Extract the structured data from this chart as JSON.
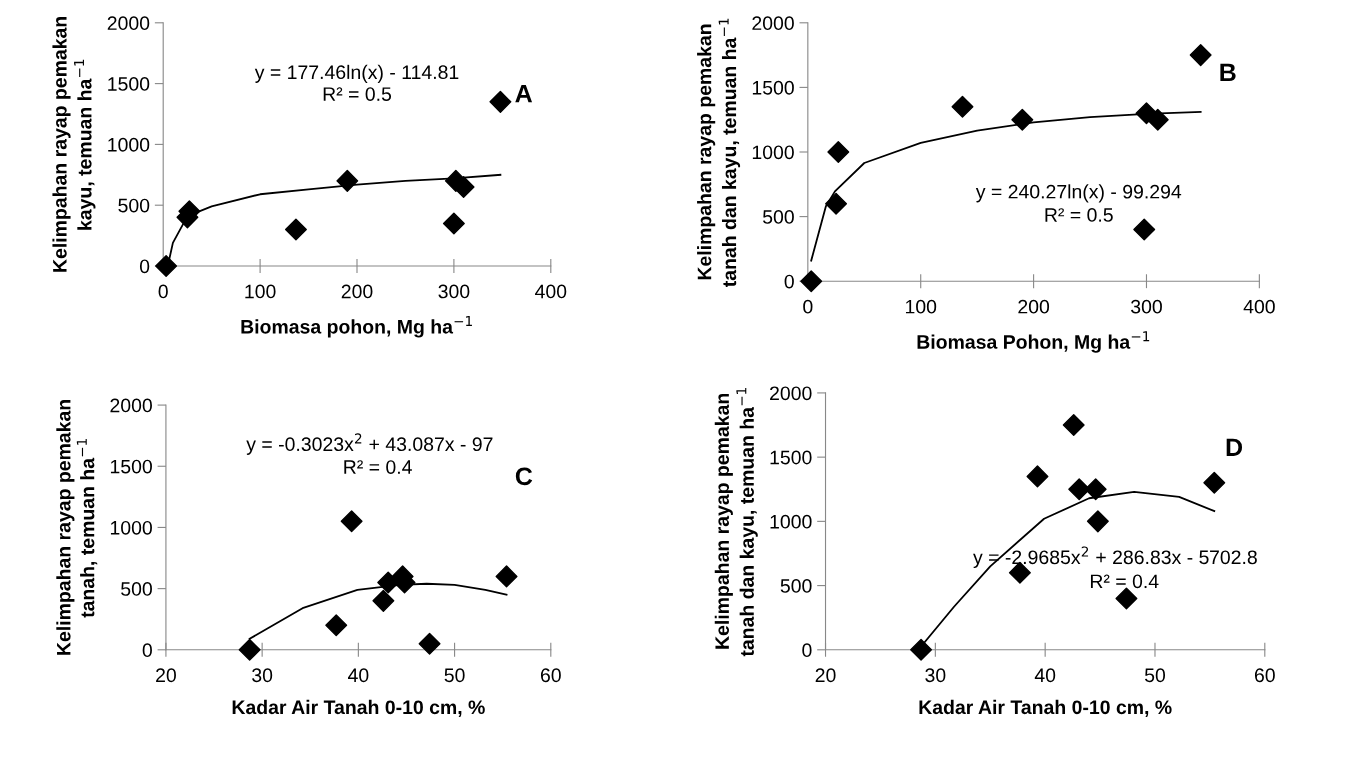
{
  "chart_data": [
    {
      "type": "scatter",
      "xlabel": "Biomasa pohon, Mg ha$^{−1}$",
      "ylabel": "Kelimpahan rayap pemakan\nkayu, temuan ha$^{−1}$",
      "annotations": [
        "A",
        "y = 177.46ln(x) - 114.81",
        "R² = 0.5"
      ],
      "xlim": [
        0,
        400
      ],
      "xticks": [
        0,
        100,
        200,
        300,
        400
      ],
      "ylim": [
        0,
        2000
      ],
      "yticks": [
        0,
        500,
        1000,
        1500,
        2000
      ],
      "marker": "diamond",
      "grid": false,
      "legend": false,
      "series": [
        {
          "color": "#000000",
          "x": [
            3,
            25,
            27,
            137,
            190,
            300,
            302,
            310,
            348
          ],
          "values": [
            0,
            400,
            450,
            300,
            700,
            350,
            700,
            650,
            1350
          ]
        },
        {
          "type": "line",
          "marker": "none",
          "color": "#000000",
          "x": [
            5,
            10,
            25,
            50,
            100,
            150,
            200,
            250,
            300,
            348
          ],
          "values": [
            10,
            190,
            410,
            490,
            590,
            630,
            670,
            700,
            720,
            750
          ]
        }
      ]
    },
    {
      "type": "scatter",
      "xlabel": "Biomasa Pohon, Mg ha$^{−1}$",
      "ylabel": "Kelimpahan rayap pemakan\ntanah dan kayu, temuan ha$^{−1}$",
      "annotations": [
        "B",
        "y = 240.27ln(x) - 99.294",
        "R² = 0.5"
      ],
      "xlim": [
        0,
        400
      ],
      "xticks": [
        0,
        100,
        200,
        300,
        400
      ],
      "ylim": [
        0,
        2000
      ],
      "yticks": [
        0,
        500,
        1000,
        1500,
        2000
      ],
      "marker": "diamond",
      "grid": false,
      "legend": false,
      "series": [
        {
          "color": "#000000",
          "x": [
            3,
            25,
            27,
            137,
            190,
            298,
            300,
            310,
            348
          ],
          "values": [
            0,
            600,
            1000,
            1350,
            1250,
            400,
            1300,
            1250,
            1750
          ]
        },
        {
          "type": "line",
          "marker": "none",
          "color": "#000000",
          "x": [
            3,
            16,
            24,
            50,
            100,
            150,
            200,
            250,
            300,
            348
          ],
          "values": [
            160,
            580,
            695,
            915,
            1070,
            1165,
            1230,
            1270,
            1295,
            1310
          ]
        }
      ]
    },
    {
      "type": "scatter",
      "xlabel": "Kadar Air Tanah 0-10 cm, %",
      "ylabel": "Kelimpahan rayap pemakan\ntanah, temuan ha$^{−1}$",
      "annotations": [
        "C",
        "y = -0.3023x$^{2}$ + 43.087x - 97",
        "R² = 0.4"
      ],
      "xlim": [
        20,
        60
      ],
      "xticks": [
        20,
        30,
        40,
        50,
        60
      ],
      "ylim": [
        0,
        2000
      ],
      "yticks": [
        0,
        500,
        1000,
        1500,
        2000
      ],
      "marker": "diamond",
      "grid": false,
      "legend": false,
      "series": [
        {
          "color": "#000000",
          "x": [
            28.7,
            37.7,
            39.3,
            42.6,
            43.1,
            44.6,
            44.8,
            47.4,
            55.4
          ],
          "values": [
            0,
            200,
            1050,
            400,
            550,
            600,
            550,
            50,
            600
          ]
        },
        {
          "type": "line",
          "marker": "none",
          "color": "#000000",
          "x": [
            28.7,
            34.2,
            39.9,
            44.3,
            47.1,
            50,
            53.2,
            55.4
          ],
          "values": [
            90,
            340,
            490,
            530,
            540,
            530,
            490,
            450
          ]
        }
      ]
    },
    {
      "type": "scatter",
      "xlabel": "Kadar Air Tanah 0-10 cm, %",
      "ylabel": "Kelimpahan rayap pemakan\ntanah dan kayu, temuan ha$^{−1}$",
      "annotations": [
        "D",
        "y = -2.9685x$^{2}$ + 286.83x - 5702.8",
        "R² = 0.4"
      ],
      "xlim": [
        20,
        60
      ],
      "xticks": [
        20,
        30,
        40,
        50,
        60
      ],
      "ylim": [
        0,
        2000
      ],
      "yticks": [
        0,
        500,
        1000,
        1500,
        2000
      ],
      "marker": "diamond",
      "grid": false,
      "legend": false,
      "series": [
        {
          "color": "#000000",
          "x": [
            28.7,
            37.7,
            39.3,
            42.6,
            43.1,
            44.6,
            44.8,
            47.4,
            55.4
          ],
          "values": [
            0,
            600,
            1350,
            1750,
            1250,
            1250,
            1000,
            400,
            1300
          ]
        },
        {
          "type": "line",
          "marker": "none",
          "color": "#000000",
          "x": [
            28.7,
            31.7,
            35,
            39.9,
            44,
            48.1,
            52.2,
            55.4
          ],
          "values": [
            25,
            335,
            650,
            1020,
            1180,
            1230,
            1190,
            1080
          ]
        }
      ]
    }
  ]
}
